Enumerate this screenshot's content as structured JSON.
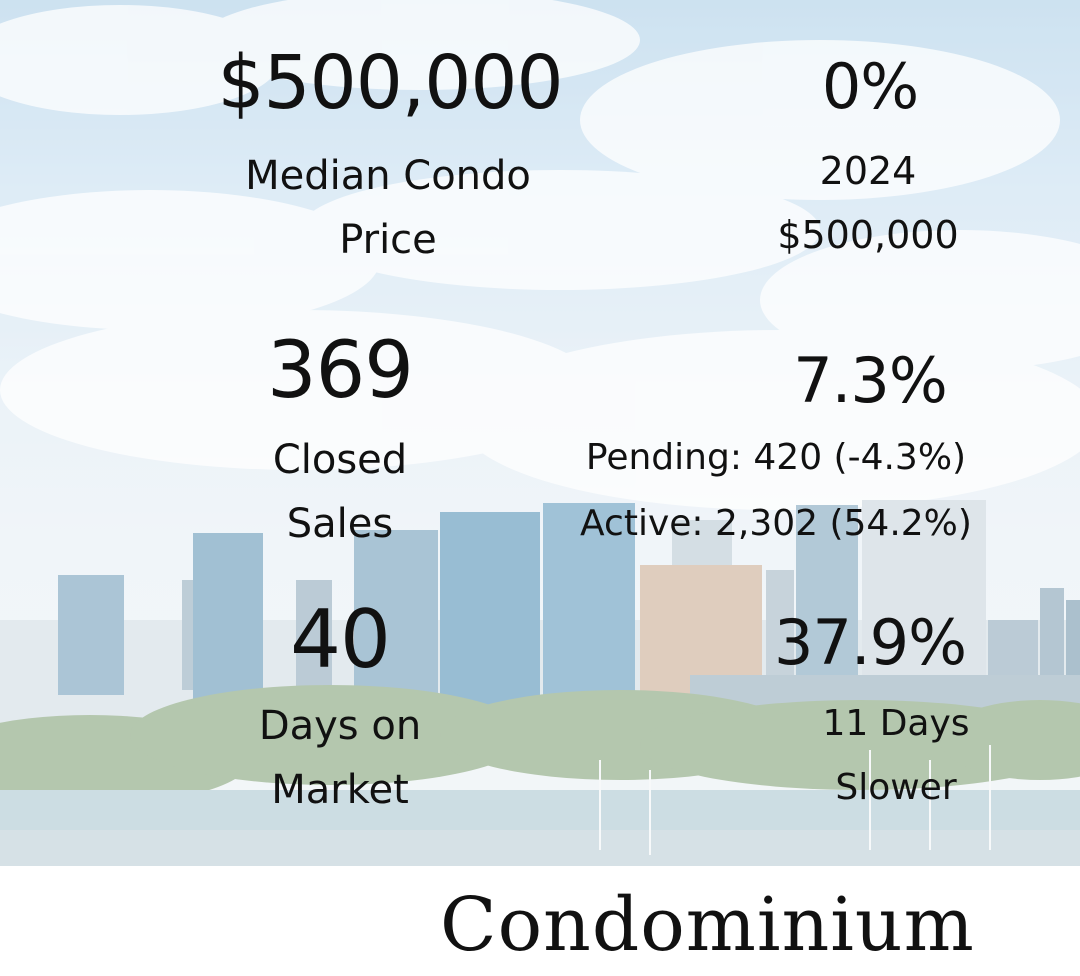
{
  "stats": {
    "median_price": {
      "value": "$500,000",
      "label_1": "Median Condo",
      "label_2": "Price"
    },
    "price_change": {
      "value": "0%",
      "line_1": "2024",
      "line_2": "$500,000"
    },
    "closed_sales": {
      "value": "369",
      "label_1": "Closed",
      "label_2": "Sales"
    },
    "sales_change": {
      "value": "7.3%",
      "pending": "Pending: 420 (-4.3%)",
      "active": "Active: 2,302 (54.2%)"
    },
    "days_on_market": {
      "value": "40",
      "label_1": "Days on",
      "label_2": "Market"
    },
    "dom_change": {
      "value": "37.9%",
      "line_1": "11 Days",
      "line_2": "Slower"
    }
  },
  "footer": {
    "title": "Condominium"
  },
  "colors": {
    "text": "#111111",
    "sky": "#c6def0",
    "building": "#5f95b5",
    "background": "#ffffff"
  }
}
